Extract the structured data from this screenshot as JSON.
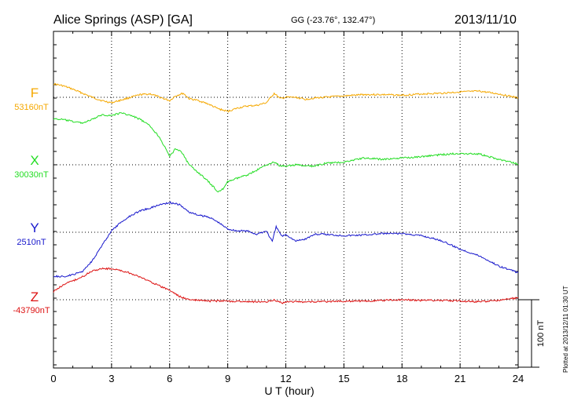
{
  "header": {
    "station": "Alice Springs (ASP)  [GA]",
    "coords": "GG (-23.76°, 132.47°)",
    "date": "2013/11/10"
  },
  "plotted_note": "Plotted at 2013/12/11 01:30 UT",
  "chart_data": {
    "type": "line",
    "xlabel": "U T (hour)",
    "xlim": [
      0,
      24
    ],
    "xticks": [
      0,
      3,
      6,
      9,
      12,
      15,
      18,
      21,
      24
    ],
    "scale_bar": {
      "label": "100 nT",
      "value_nT": 100
    },
    "grid": true,
    "series": [
      {
        "name": "F",
        "baseline_label": "53160nT",
        "color": "#f5a800",
        "baseline_nT": 53160,
        "points": [
          [
            0,
            53180
          ],
          [
            0.5,
            53177
          ],
          [
            1,
            53172
          ],
          [
            1.5,
            53166
          ],
          [
            2,
            53160
          ],
          [
            2.5,
            53155
          ],
          [
            3,
            53152
          ],
          [
            3.5,
            53156
          ],
          [
            4,
            53160
          ],
          [
            4.5,
            53164
          ],
          [
            5,
            53165
          ],
          [
            5.5,
            53160
          ],
          [
            6,
            53155
          ],
          [
            6.3,
            53162
          ],
          [
            6.7,
            53166
          ],
          [
            7,
            53158
          ],
          [
            7.5,
            53155
          ],
          [
            8,
            53150
          ],
          [
            8.5,
            53143
          ],
          [
            9,
            53139
          ],
          [
            9.5,
            53144
          ],
          [
            10,
            53147
          ],
          [
            10.5,
            53148
          ],
          [
            11,
            53152
          ],
          [
            11.4,
            53166
          ],
          [
            11.7,
            53158
          ],
          [
            12,
            53160
          ],
          [
            12.5,
            53160
          ],
          [
            13,
            53157
          ],
          [
            13.5,
            53159
          ],
          [
            14,
            53160
          ],
          [
            15,
            53162
          ],
          [
            16,
            53164
          ],
          [
            17,
            53164
          ],
          [
            18,
            53163
          ],
          [
            19,
            53165
          ],
          [
            20,
            53166
          ],
          [
            21,
            53168
          ],
          [
            22,
            53169
          ],
          [
            23,
            53165
          ],
          [
            24,
            53159
          ]
        ]
      },
      {
        "name": "X",
        "baseline_label": "30030nT",
        "color": "#22dd22",
        "baseline_nT": 30030,
        "points": [
          [
            0,
            30098
          ],
          [
            0.5,
            30097
          ],
          [
            1,
            30094
          ],
          [
            1.5,
            30092
          ],
          [
            2,
            30097
          ],
          [
            2.5,
            30104
          ],
          [
            3,
            30103
          ],
          [
            3.5,
            30107
          ],
          [
            4,
            30103
          ],
          [
            4.5,
            30097
          ],
          [
            5,
            30087
          ],
          [
            5.5,
            30070
          ],
          [
            6,
            30042
          ],
          [
            6.3,
            30054
          ],
          [
            6.6,
            30050
          ],
          [
            7,
            30030
          ],
          [
            7.5,
            30018
          ],
          [
            8,
            30005
          ],
          [
            8.5,
            29990
          ],
          [
            8.8,
            29995
          ],
          [
            9,
            30005
          ],
          [
            9.5,
            30010
          ],
          [
            10,
            30015
          ],
          [
            10.5,
            30022
          ],
          [
            11,
            30030
          ],
          [
            11.4,
            30034
          ],
          [
            11.7,
            30028
          ],
          [
            12,
            30028
          ],
          [
            12.5,
            30030
          ],
          [
            13,
            30028
          ],
          [
            13.5,
            30028
          ],
          [
            14,
            30032
          ],
          [
            15,
            30034
          ],
          [
            16,
            30040
          ],
          [
            17,
            30038
          ],
          [
            18,
            30040
          ],
          [
            19,
            30042
          ],
          [
            20,
            30045
          ],
          [
            21,
            30047
          ],
          [
            22,
            30046
          ],
          [
            23,
            30038
          ],
          [
            24,
            30031
          ]
        ]
      },
      {
        "name": "Y",
        "baseline_label": "2510nT",
        "color": "#1818cc",
        "baseline_nT": 2510,
        "points": [
          [
            0,
            2445
          ],
          [
            0.5,
            2444
          ],
          [
            1,
            2447
          ],
          [
            1.5,
            2452
          ],
          [
            2,
            2468
          ],
          [
            2.5,
            2490
          ],
          [
            3,
            2512
          ],
          [
            3.5,
            2525
          ],
          [
            4,
            2535
          ],
          [
            4.5,
            2542
          ],
          [
            5,
            2546
          ],
          [
            5.5,
            2551
          ],
          [
            6,
            2554
          ],
          [
            6.5,
            2551
          ],
          [
            7,
            2540
          ],
          [
            7.5,
            2535
          ],
          [
            8,
            2533
          ],
          [
            8.5,
            2525
          ],
          [
            9,
            2515
          ],
          [
            9.5,
            2512
          ],
          [
            10,
            2512
          ],
          [
            10.5,
            2507
          ],
          [
            11,
            2512
          ],
          [
            11.3,
            2496
          ],
          [
            11.5,
            2518
          ],
          [
            11.8,
            2504
          ],
          [
            12,
            2507
          ],
          [
            12.5,
            2497
          ],
          [
            13,
            2500
          ],
          [
            13.5,
            2507
          ],
          [
            14,
            2507
          ],
          [
            15,
            2505
          ],
          [
            16,
            2506
          ],
          [
            17,
            2508
          ],
          [
            18,
            2508
          ],
          [
            19,
            2505
          ],
          [
            20,
            2498
          ],
          [
            21,
            2485
          ],
          [
            22,
            2475
          ],
          [
            23,
            2460
          ],
          [
            24,
            2450
          ]
        ]
      },
      {
        "name": "Z",
        "baseline_label": "-43790nT",
        "color": "#dd1111",
        "baseline_nT": -43790,
        "points": [
          [
            0,
            -43778
          ],
          [
            0.5,
            -43768
          ],
          [
            1,
            -43762
          ],
          [
            1.5,
            -43756
          ],
          [
            2,
            -43747
          ],
          [
            2.5,
            -43744
          ],
          [
            3,
            -43744
          ],
          [
            3.5,
            -43747
          ],
          [
            4,
            -43751
          ],
          [
            4.5,
            -43757
          ],
          [
            5,
            -43763
          ],
          [
            5.5,
            -43770
          ],
          [
            6,
            -43776
          ],
          [
            6.5,
            -43785
          ],
          [
            7,
            -43790
          ],
          [
            7.5,
            -43791
          ],
          [
            8,
            -43792
          ],
          [
            9,
            -43792
          ],
          [
            10,
            -43793
          ],
          [
            11,
            -43793
          ],
          [
            11.4,
            -43790
          ],
          [
            11.8,
            -43795
          ],
          [
            12,
            -43793
          ],
          [
            13,
            -43793
          ],
          [
            14,
            -43793
          ],
          [
            15,
            -43792
          ],
          [
            16,
            -43792
          ],
          [
            17,
            -43791
          ],
          [
            18,
            -43790
          ],
          [
            19,
            -43791
          ],
          [
            20,
            -43791
          ],
          [
            21,
            -43792
          ],
          [
            22,
            -43793
          ],
          [
            23,
            -43791
          ],
          [
            24,
            -43787
          ]
        ]
      }
    ]
  }
}
